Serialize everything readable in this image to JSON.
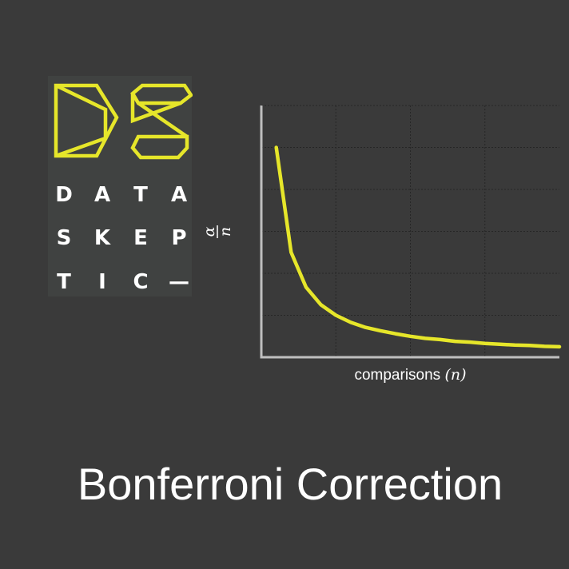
{
  "logo": {
    "rows": [
      [
        "D",
        "A",
        "T",
        "A"
      ],
      [
        "S",
        "K",
        "E",
        "P"
      ],
      [
        "T",
        "I",
        "C",
        "—"
      ]
    ],
    "colors": {
      "mark": "#e6e62a",
      "text": "#ffffff",
      "background": "#404241"
    }
  },
  "chart_data": {
    "type": "line",
    "title": "",
    "xlabel": "comparisons",
    "xlabel_var": "(n)",
    "ylabel_num": "α",
    "ylabel_den": "n",
    "x": [
      1,
      2,
      3,
      4,
      5,
      6,
      7,
      8,
      9,
      10,
      11,
      12,
      13,
      14,
      15,
      16,
      17,
      18,
      19,
      20
    ],
    "y": [
      0.05,
      0.025,
      0.0167,
      0.0125,
      0.01,
      0.0083,
      0.0071,
      0.0063,
      0.0056,
      0.005,
      0.0045,
      0.0042,
      0.0038,
      0.0036,
      0.0033,
      0.0031,
      0.0029,
      0.0028,
      0.0026,
      0.0025
    ],
    "xlim": [
      0,
      20
    ],
    "ylim": [
      0,
      0.06
    ],
    "x_gridlines": [
      5,
      10,
      15
    ],
    "y_gridlines": [
      0.01,
      0.02,
      0.03,
      0.04,
      0.05,
      0.06
    ],
    "grid": true,
    "tick_labels_visible": false,
    "colors": {
      "line": "#e6e62a",
      "axis": "#bfbfbf",
      "grid": "#262626"
    }
  },
  "title": "Bonferroni Correction"
}
